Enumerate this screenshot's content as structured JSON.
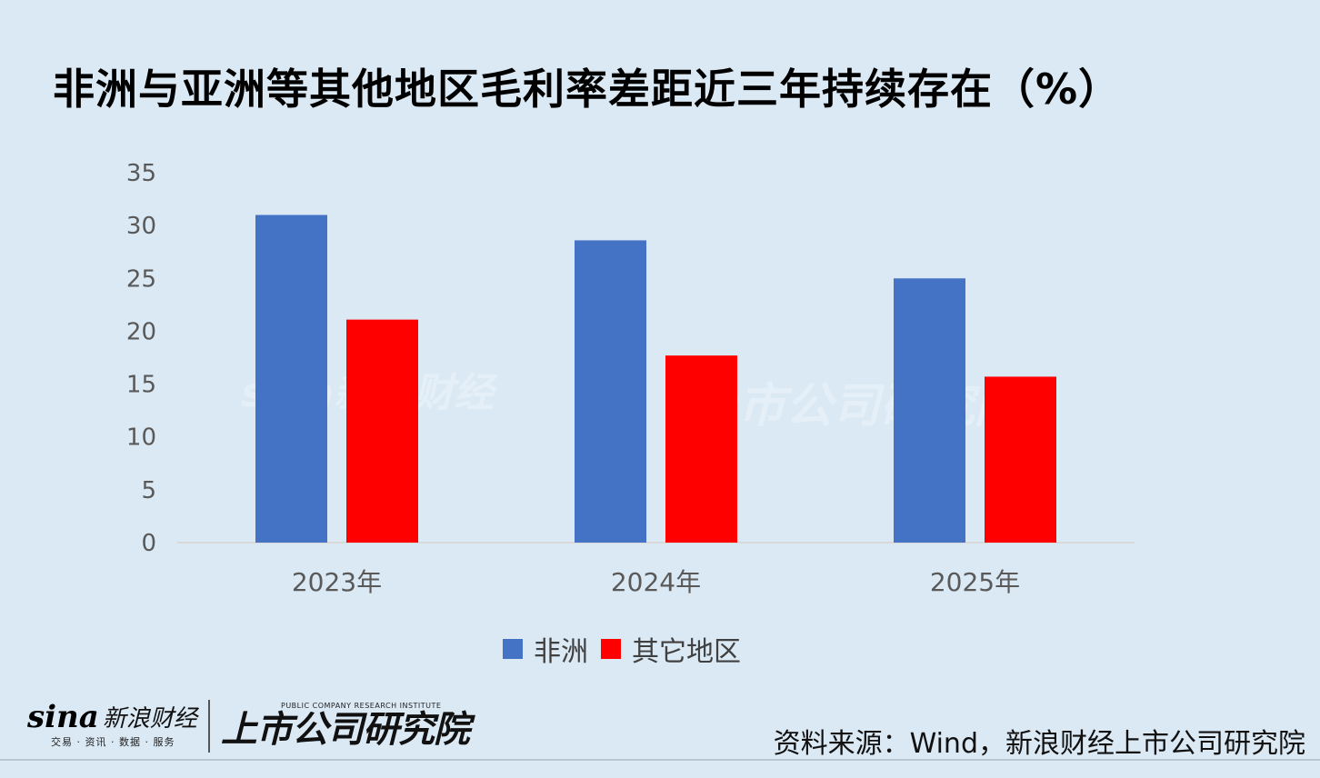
{
  "title": "非洲与亚洲等其他地区毛利率差距近三年持续存在（%）",
  "chart_data": {
    "type": "bar",
    "categories": [
      "2023年",
      "2024年",
      "2025年"
    ],
    "series": [
      {
        "name": "非洲",
        "values": [
          31.0,
          28.6,
          25.0
        ],
        "color": "#4472c4"
      },
      {
        "name": "其它地区",
        "values": [
          21.1,
          17.7,
          15.7
        ],
        "color": "#ff0000"
      }
    ],
    "ylim": [
      0,
      35
    ],
    "yticks": [
      0,
      5,
      10,
      15,
      20,
      25,
      30,
      35
    ],
    "legend_position": "bottom",
    "grid": false
  },
  "watermark": {
    "left": "sina新浪财经",
    "right": "上市公司研究院"
  },
  "branding": {
    "sina_logo": "sina",
    "sina_name": "新浪财经",
    "sina_sub": "交易 · 资讯 · 数据 · 服务",
    "inst_en": "PUBLIC COMPANY RESEARCH INSTITUTE",
    "inst_cn": "上市公司研究院"
  },
  "source": "资料来源：Wind，新浪财经上市公司研究院"
}
